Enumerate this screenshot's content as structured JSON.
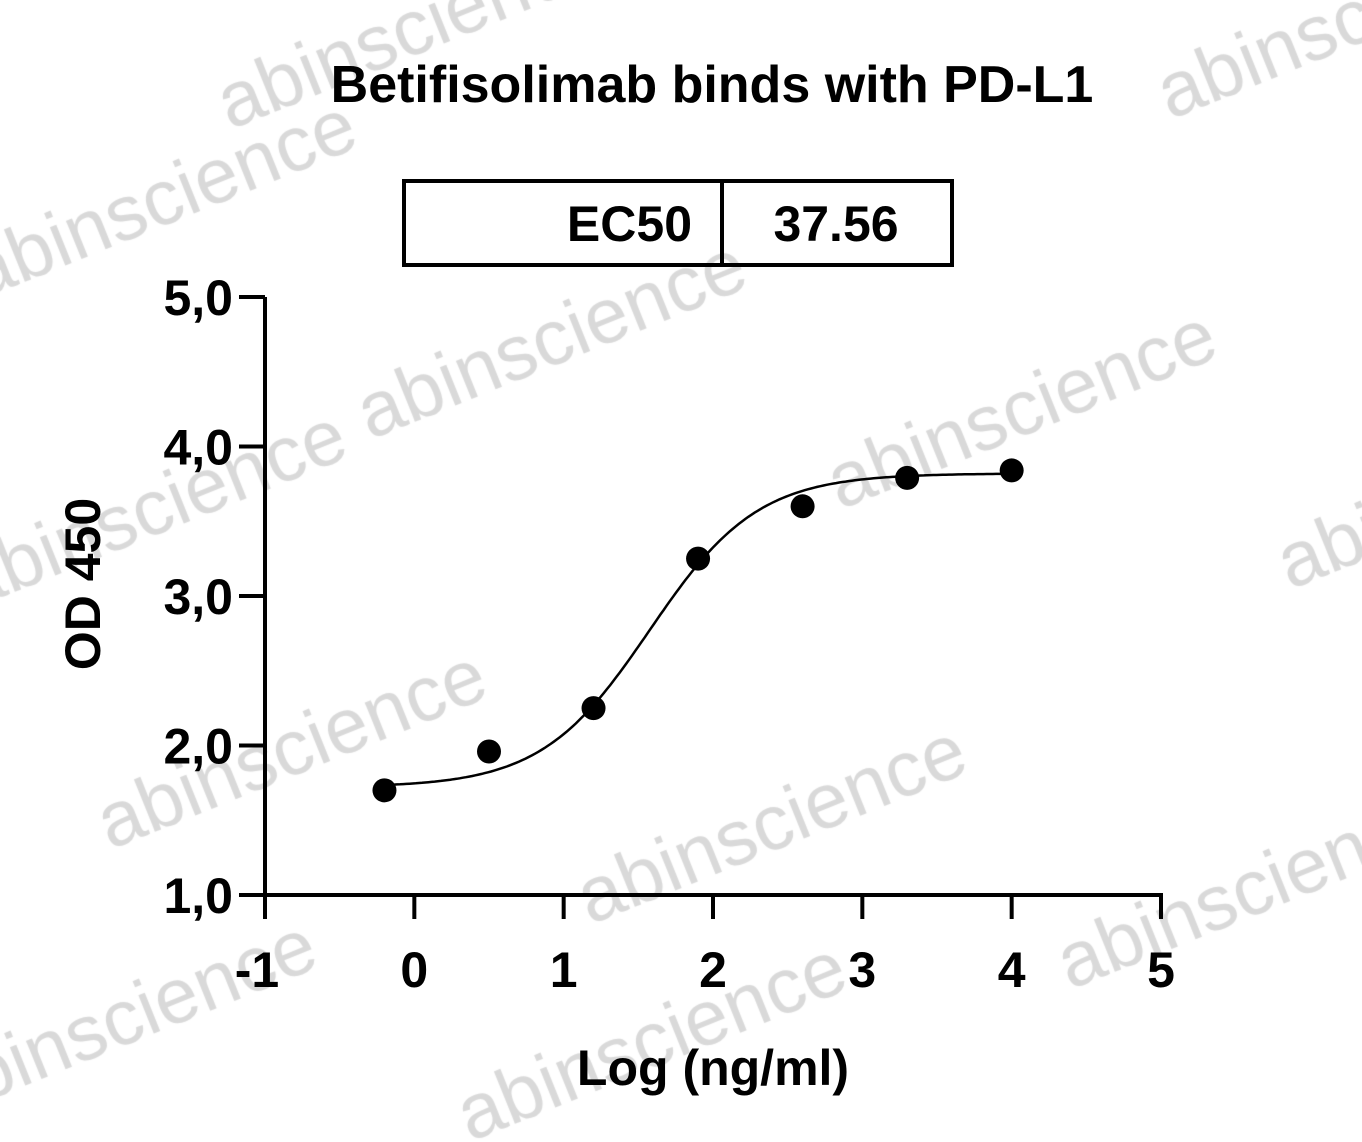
{
  "chart_data": {
    "type": "scatter",
    "title": "Betifisolimab binds with PD-L1",
    "xlabel": "Log (ng/ml)",
    "ylabel": "OD 450",
    "xlim": [
      -1,
      5
    ],
    "ylim": [
      1.0,
      5.0
    ],
    "xticks": [
      "-1",
      "0",
      "1",
      "2",
      "3",
      "4",
      "5"
    ],
    "yticks": [
      "1,0",
      "2,0",
      "3,0",
      "4,0",
      "5,0"
    ],
    "x": [
      -0.2,
      0.5,
      1.2,
      1.9,
      2.6,
      3.3,
      4.0
    ],
    "y": [
      1.7,
      1.96,
      2.25,
      3.25,
      3.6,
      3.79,
      3.84
    ],
    "fit": {
      "model": "4PL",
      "bottom": 1.72,
      "top": 3.82,
      "ec50": 37.56,
      "hill": 1.2
    },
    "table": {
      "label": "EC50",
      "value": "37.56"
    },
    "grid": false,
    "color": "#000000",
    "watermark": "abinscience"
  }
}
